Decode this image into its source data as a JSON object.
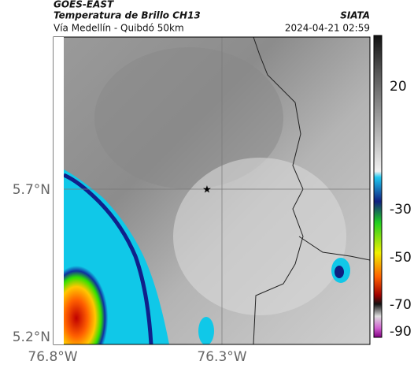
{
  "header": {
    "title": "GOES-EAST",
    "subtitle": "Temperatura de Brillo CH13",
    "route": "Vía Medellín - Quibdó 50km",
    "source": "SIATA",
    "datetime": "2024-04-21 02:59"
  },
  "axes": {
    "lat_labels": [
      "5.7°N",
      "5.2°N"
    ],
    "lon_labels": [
      "76.8°W",
      "76.3°W"
    ]
  },
  "colorbar": {
    "ticks": [
      "20",
      "-30",
      "-50",
      "-70",
      "-90"
    ]
  }
}
